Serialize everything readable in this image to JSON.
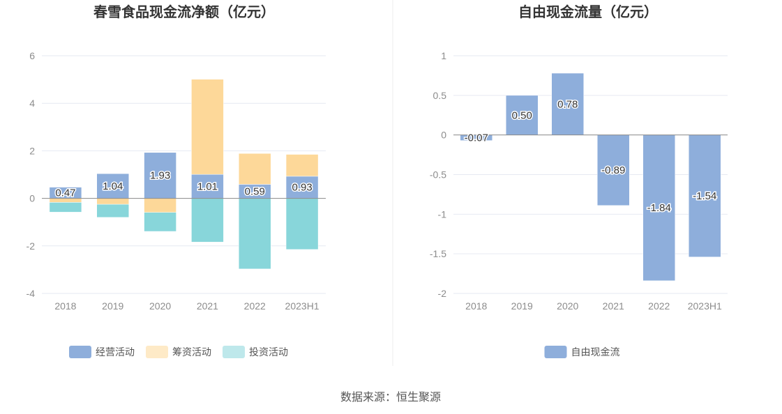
{
  "chart_data": [
    {
      "type": "bar",
      "stacked": true,
      "title": "春雪食品现金流净额（亿元）",
      "categories": [
        "2018",
        "2019",
        "2020",
        "2021",
        "2022",
        "2023H1"
      ],
      "ylim": [
        -4,
        6
      ],
      "yticks": [
        -4,
        -2,
        0,
        2,
        4,
        6
      ],
      "legend": "bottom",
      "series": [
        {
          "name": "经营活动",
          "color": "#8eaedb",
          "values": [
            0.47,
            1.04,
            1.93,
            1.01,
            0.59,
            0.93
          ],
          "labels": [
            "0.47",
            "1.04",
            "1.93",
            "1.01",
            "0.59",
            "0.93"
          ]
        },
        {
          "name": "筹资活动",
          "color": "#fdd899",
          "values": [
            -0.17,
            -0.25,
            -0.59,
            4.0,
            1.3,
            0.92
          ]
        },
        {
          "name": "投资活动",
          "color": "#88d6da",
          "values": [
            -0.41,
            -0.55,
            -0.8,
            -1.84,
            -2.97,
            -2.15
          ]
        }
      ]
    },
    {
      "type": "bar",
      "title": "自由现金流量（亿元）",
      "categories": [
        "2018",
        "2019",
        "2020",
        "2021",
        "2022",
        "2023H1"
      ],
      "ylim": [
        -2,
        1
      ],
      "yticks": [
        -2,
        -1.5,
        -1,
        -0.5,
        0,
        0.5,
        1
      ],
      "legend": "bottom",
      "series": [
        {
          "name": "自由现金流",
          "color": "#8eaedb",
          "values": [
            -0.07,
            0.5,
            0.78,
            -0.89,
            -1.84,
            -1.54
          ],
          "labels": [
            "-0.07",
            "0.50",
            "0.78",
            "-0.89",
            "-1.84",
            "-1.54"
          ]
        }
      ]
    }
  ],
  "source": "数据来源：恒生聚源"
}
